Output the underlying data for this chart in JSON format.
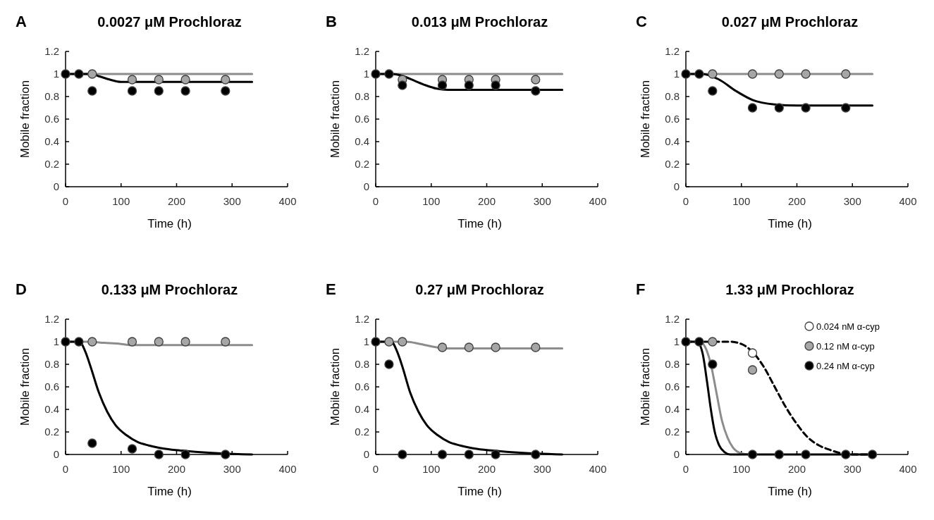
{
  "chart_data": [
    {
      "type": "scatter",
      "title": "0.0027 μM Prochloraz",
      "annotations": [
        "A"
      ],
      "xlabel": "Time (h)",
      "ylabel": "Mobile fraction",
      "xlim": [
        0,
        400
      ],
      "ylim": [
        0,
        1.2
      ],
      "xticks": [
        0,
        100,
        200,
        300,
        400
      ],
      "yticks": [
        0,
        0.2,
        0.4,
        0.6,
        0.8,
        1,
        1.2
      ],
      "marker": "circle",
      "series": [
        {
          "type": "line",
          "marker": "none",
          "color": "#8c8c8c",
          "x": [
            0,
            336
          ],
          "values": [
            1,
            1
          ]
        },
        {
          "type": "line",
          "marker": "none",
          "color": "#000000",
          "x": [
            0,
            45,
            60,
            80,
            100,
            336
          ],
          "values": [
            1,
            1,
            0.98,
            0.95,
            0.93,
            0.93
          ]
        },
        {
          "color": "#a6a6a6",
          "x": [
            48,
            120,
            168,
            216,
            288
          ],
          "values": [
            1,
            0.95,
            0.95,
            0.95,
            0.95
          ]
        },
        {
          "color": "#000000",
          "x": [
            0,
            24,
            48,
            120,
            168,
            216,
            288
          ],
          "values": [
            1,
            1,
            0.85,
            0.85,
            0.85,
            0.85,
            0.85
          ]
        }
      ]
    },
    {
      "type": "scatter",
      "title": "0.013 μM Prochloraz",
      "annotations": [
        "B"
      ],
      "xlabel": "Time (h)",
      "ylabel": "Mobile fraction",
      "xlim": [
        0,
        400
      ],
      "ylim": [
        0,
        1.2
      ],
      "xticks": [
        0,
        100,
        200,
        300,
        400
      ],
      "yticks": [
        0,
        0.2,
        0.4,
        0.6,
        0.8,
        1,
        1.2
      ],
      "marker": "circle",
      "series": [
        {
          "type": "line",
          "marker": "none",
          "color": "#8c8c8c",
          "x": [
            0,
            336
          ],
          "values": [
            1,
            1
          ]
        },
        {
          "type": "line",
          "marker": "none",
          "color": "#000000",
          "x": [
            0,
            30,
            50,
            70,
            90,
            110,
            130,
            336
          ],
          "values": [
            1,
            1,
            0.98,
            0.94,
            0.9,
            0.87,
            0.86,
            0.86
          ]
        },
        {
          "color": "#a6a6a6",
          "x": [
            48,
            120,
            168,
            216,
            288
          ],
          "values": [
            0.95,
            0.95,
            0.95,
            0.95,
            0.95
          ]
        },
        {
          "color": "#000000",
          "x": [
            0,
            24,
            48,
            120,
            168,
            216,
            288
          ],
          "values": [
            1,
            1,
            0.9,
            0.9,
            0.9,
            0.9,
            0.85
          ]
        }
      ]
    },
    {
      "type": "scatter",
      "title": "0.027 μM Prochloraz",
      "annotations": [
        "C"
      ],
      "xlabel": "Time (h)",
      "ylabel": "Mobile fraction",
      "xlim": [
        0,
        400
      ],
      "ylim": [
        0,
        1.2
      ],
      "xticks": [
        0,
        100,
        200,
        300,
        400
      ],
      "yticks": [
        0,
        0.2,
        0.4,
        0.6,
        0.8,
        1,
        1.2
      ],
      "marker": "circle",
      "series": [
        {
          "type": "line",
          "marker": "none",
          "color": "#8c8c8c",
          "x": [
            0,
            336
          ],
          "values": [
            1,
            1
          ]
        },
        {
          "type": "line",
          "marker": "none",
          "color": "#000000",
          "x": [
            0,
            30,
            60,
            90,
            120,
            160,
            200,
            336
          ],
          "values": [
            1,
            1,
            0.95,
            0.85,
            0.77,
            0.73,
            0.72,
            0.72
          ]
        },
        {
          "color": "#a6a6a6",
          "x": [
            48,
            120,
            168,
            216,
            288
          ],
          "values": [
            1,
            1,
            1,
            1,
            1
          ]
        },
        {
          "color": "#000000",
          "x": [
            0,
            24,
            48,
            120,
            168,
            216,
            288
          ],
          "values": [
            1,
            1,
            0.85,
            0.7,
            0.7,
            0.7,
            0.7
          ]
        }
      ]
    },
    {
      "type": "scatter",
      "title": "0.133 μM Prochloraz",
      "annotations": [
        "D"
      ],
      "xlabel": "Time (h)",
      "ylabel": "Mobile fraction",
      "xlim": [
        0,
        400
      ],
      "ylim": [
        0,
        1.2
      ],
      "xticks": [
        0,
        100,
        200,
        300,
        400
      ],
      "yticks": [
        0,
        0.2,
        0.4,
        0.6,
        0.8,
        1,
        1.2
      ],
      "marker": "circle",
      "series": [
        {
          "type": "line",
          "marker": "none",
          "color": "#8c8c8c",
          "x": [
            0,
            40,
            70,
            100,
            120,
            336
          ],
          "values": [
            1,
            1,
            0.99,
            0.98,
            0.97,
            0.97
          ]
        },
        {
          "type": "line",
          "marker": "none",
          "color": "#000000",
          "x": [
            0,
            25,
            35,
            45,
            60,
            75,
            90,
            110,
            130,
            150,
            180,
            220,
            280,
            336
          ],
          "values": [
            1,
            1,
            0.92,
            0.78,
            0.55,
            0.38,
            0.26,
            0.17,
            0.11,
            0.08,
            0.05,
            0.03,
            0.01,
            0
          ]
        },
        {
          "color": "#a6a6a6",
          "x": [
            48,
            120,
            168,
            216,
            288
          ],
          "values": [
            1,
            1,
            1,
            1,
            1
          ]
        },
        {
          "color": "#000000",
          "x": [
            0,
            24,
            48,
            120,
            168,
            216,
            288
          ],
          "values": [
            1,
            1,
            0.1,
            0.05,
            0,
            0,
            0
          ]
        }
      ]
    },
    {
      "type": "scatter",
      "title": "0.27 μM Prochloraz",
      "annotations": [
        "E"
      ],
      "xlabel": "Time (h)",
      "ylabel": "Mobile fraction",
      "xlim": [
        0,
        400
      ],
      "ylim": [
        0,
        1.2
      ],
      "xticks": [
        0,
        100,
        200,
        300,
        400
      ],
      "yticks": [
        0,
        0.2,
        0.4,
        0.6,
        0.8,
        1,
        1.2
      ],
      "marker": "circle",
      "series": [
        {
          "type": "line",
          "marker": "none",
          "color": "#8c8c8c",
          "x": [
            0,
            55,
            80,
            110,
            130,
            336
          ],
          "values": [
            1,
            1,
            0.98,
            0.95,
            0.94,
            0.94
          ]
        },
        {
          "type": "line",
          "marker": "none",
          "color": "#000000",
          "x": [
            0,
            28,
            38,
            48,
            62,
            77,
            92,
            112,
            132,
            152,
            182,
            222,
            282,
            336
          ],
          "values": [
            1,
            1,
            0.92,
            0.78,
            0.55,
            0.38,
            0.26,
            0.17,
            0.11,
            0.08,
            0.05,
            0.03,
            0.01,
            0
          ]
        },
        {
          "color": "#a6a6a6",
          "x": [
            24,
            48,
            120,
            168,
            216,
            288
          ],
          "values": [
            1,
            1,
            0.95,
            0.95,
            0.95,
            0.95
          ]
        },
        {
          "color": "#000000",
          "x": [
            0,
            24,
            48,
            120,
            168,
            216,
            288
          ],
          "values": [
            1,
            0.8,
            0,
            0,
            0,
            0,
            0
          ]
        }
      ]
    },
    {
      "type": "scatter",
      "title": "1.33 μM Prochloraz",
      "annotations": [
        "F"
      ],
      "xlabel": "Time (h)",
      "ylabel": "Mobile fraction",
      "xlim": [
        0,
        400
      ],
      "ylim": [
        0,
        1.2
      ],
      "xticks": [
        0,
        100,
        200,
        300,
        400
      ],
      "yticks": [
        0,
        0.2,
        0.4,
        0.6,
        0.8,
        1,
        1.2
      ],
      "marker": "circle",
      "legend": "top right",
      "series": [
        {
          "type": "line",
          "marker": "none",
          "line_style": "dashed",
          "color": "#000000",
          "x": [
            0,
            80,
            100,
            120,
            140,
            160,
            180,
            200,
            220,
            240,
            260,
            280,
            300,
            336
          ],
          "values": [
            1,
            1,
            0.98,
            0.91,
            0.78,
            0.6,
            0.42,
            0.27,
            0.15,
            0.08,
            0.04,
            0.01,
            0,
            0
          ]
        },
        {
          "type": "line",
          "marker": "none",
          "color": "#8c8c8c",
          "x": [
            0,
            25,
            35,
            45,
            55,
            65,
            75,
            85,
            100,
            115
          ],
          "values": [
            1,
            1,
            0.95,
            0.8,
            0.55,
            0.3,
            0.15,
            0.06,
            0.01,
            0
          ]
        },
        {
          "type": "line",
          "marker": "none",
          "color": "#000000",
          "x": [
            0,
            20,
            30,
            38,
            45,
            52,
            60,
            70,
            80,
            336
          ],
          "values": [
            1,
            1,
            0.9,
            0.65,
            0.4,
            0.2,
            0.08,
            0.02,
            0,
            0
          ]
        },
        {
          "name": "0.024 nM α-cyp",
          "color": "#ffffff",
          "x": [
            120
          ],
          "values": [
            0.9
          ]
        },
        {
          "name": "0.12 nM α-cyp",
          "color": "#a6a6a6",
          "x": [
            48,
            120
          ],
          "values": [
            1,
            0.75
          ]
        },
        {
          "name": "0.24 nM α-cyp",
          "color": "#000000",
          "x": [
            0,
            24,
            48,
            120,
            168,
            216,
            288,
            336
          ],
          "values": [
            1,
            1,
            0.8,
            0,
            0,
            0,
            0,
            0
          ]
        }
      ]
    }
  ]
}
